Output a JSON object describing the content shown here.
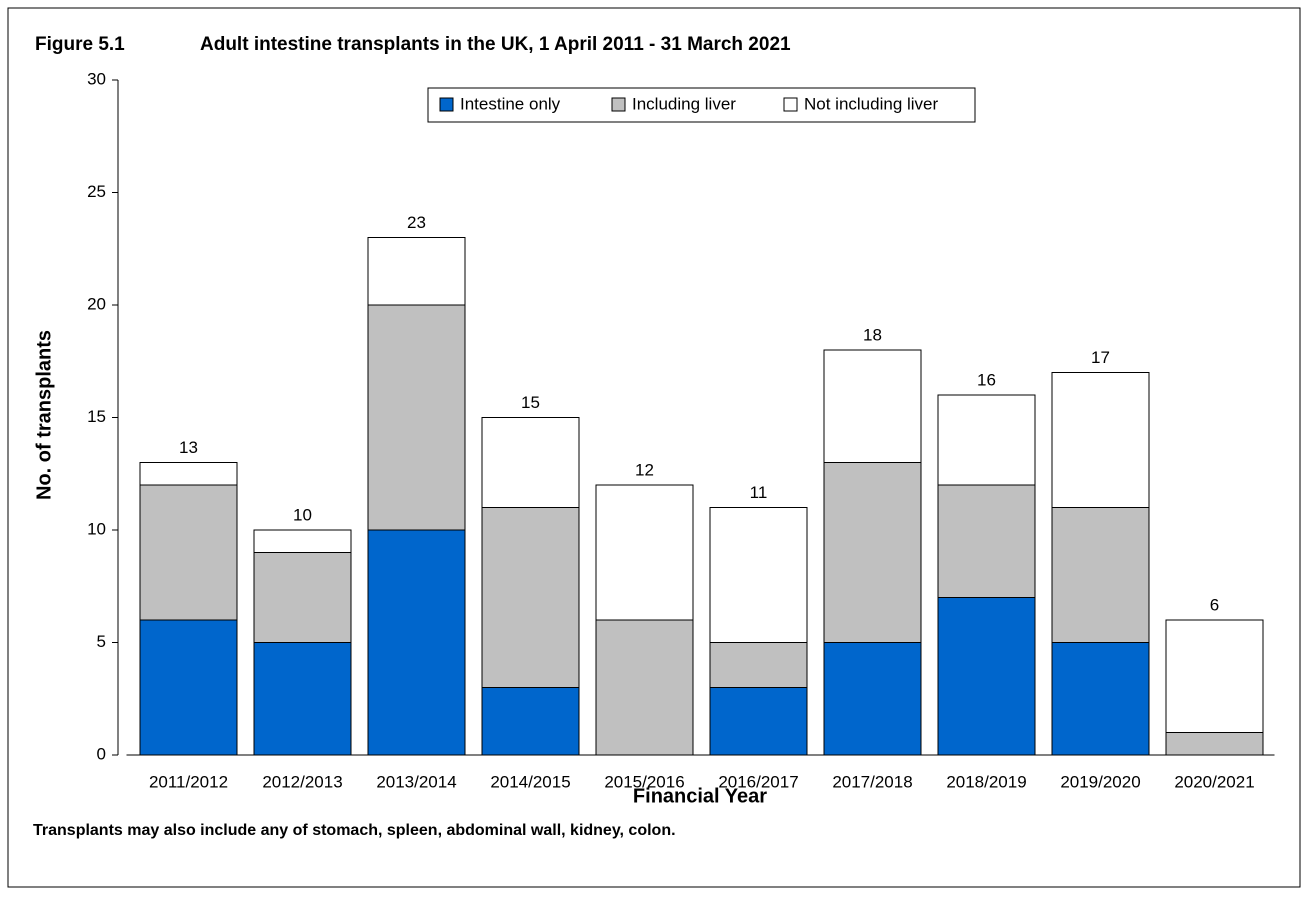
{
  "chart_data": {
    "type": "stacked_bar",
    "figure_label": "Figure 5.1",
    "title": "Adult intestine transplants in the UK, 1 April 2011 - 31 March 2021",
    "x_label": "Financial Year",
    "y_label": "No. of transplants",
    "footnote": "Transplants may also include any of stomach, spleen, abdominal wall, kidney, colon.",
    "categories": [
      "2011/2012",
      "2012/2013",
      "2013/2014",
      "2014/2015",
      "2015/2016",
      "2016/2017",
      "2017/2018",
      "2018/2019",
      "2019/2020",
      "2020/2021"
    ],
    "series": [
      {
        "name": "Intestine only",
        "color": "#0066cc",
        "values": [
          6,
          5,
          10,
          3,
          0,
          3,
          5,
          7,
          5,
          0
        ]
      },
      {
        "name": "Including liver",
        "color": "#c0c0c0",
        "values": [
          6,
          4,
          10,
          8,
          6,
          2,
          8,
          5,
          6,
          1
        ]
      },
      {
        "name": "Not including liver",
        "color": "#ffffff",
        "values": [
          1,
          1,
          3,
          4,
          6,
          6,
          5,
          4,
          6,
          5
        ]
      }
    ],
    "totals": [
      13,
      10,
      23,
      15,
      12,
      11,
      18,
      16,
      17,
      6
    ],
    "ylim": [
      0,
      30
    ],
    "yticks": [
      0,
      5,
      10,
      15,
      20,
      25,
      30
    ],
    "legend_position": "top"
  }
}
